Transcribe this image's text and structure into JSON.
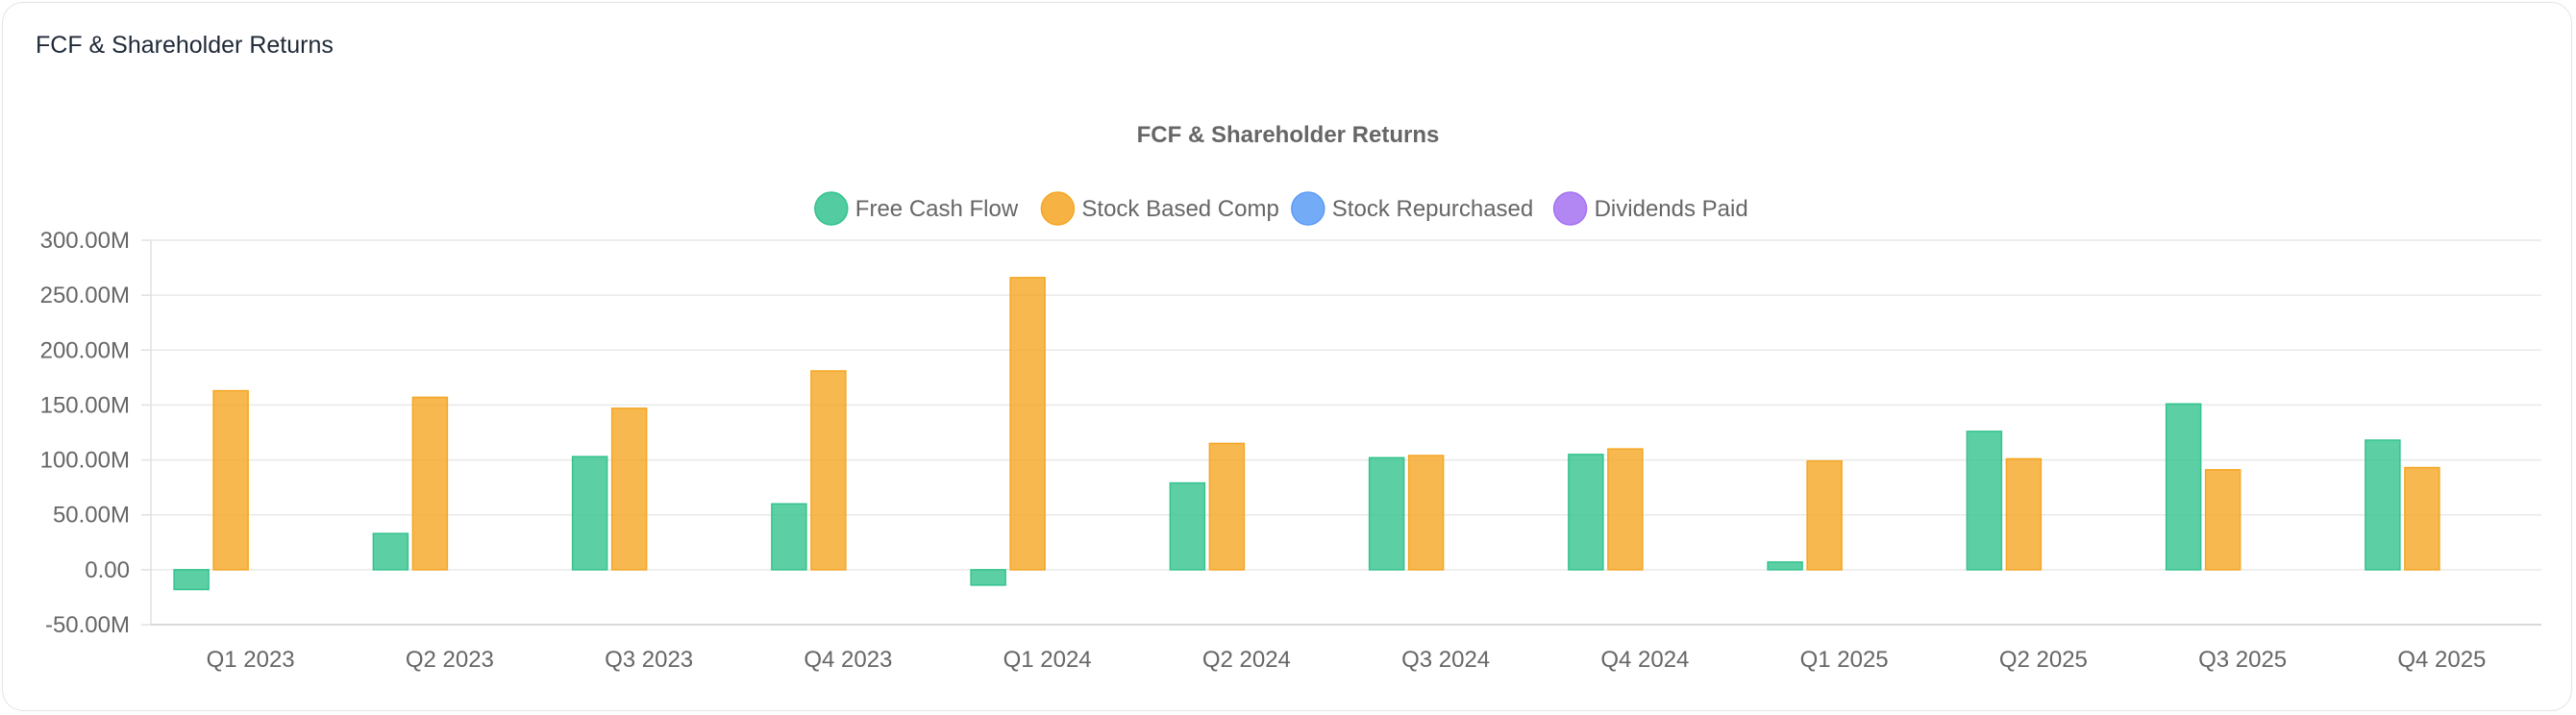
{
  "card": {
    "title": "FCF & Shareholder Returns"
  },
  "chart_data": {
    "type": "bar",
    "title": "FCF & Shareholder Returns",
    "xlabel": "",
    "ylabel": "",
    "categories": [
      "Q1 2023",
      "Q2 2023",
      "Q3 2023",
      "Q4 2023",
      "Q1 2024",
      "Q2 2024",
      "Q3 2024",
      "Q4 2024",
      "Q1 2025",
      "Q2 2025",
      "Q3 2025",
      "Q4 2025"
    ],
    "ylim": [
      -50000000,
      300000000
    ],
    "yticks": [
      300000000,
      250000000,
      200000000,
      150000000,
      100000000,
      50000000,
      0,
      -50000000
    ],
    "ytick_labels": [
      "300.00M",
      "250.00M",
      "200.00M",
      "150.00M",
      "100.00M",
      "50.00M",
      "0.00",
      "-50.00M"
    ],
    "grid": true,
    "legend_position": "top",
    "series": [
      {
        "name": "Free Cash Flow",
        "color": "#34c38f",
        "values": [
          -18000000,
          33000000,
          103000000,
          60000000,
          -14000000,
          79000000,
          102000000,
          105000000,
          7000000,
          126000000,
          151000000,
          118000000
        ]
      },
      {
        "name": "Stock Based Comp",
        "color": "#f5a623",
        "values": [
          163000000,
          157000000,
          147000000,
          181000000,
          266000000,
          115000000,
          104000000,
          110000000,
          99000000,
          101000000,
          91000000,
          93000000
        ]
      },
      {
        "name": "Stock Repurchased",
        "color": "#5b9cf6",
        "values": [
          0,
          0,
          0,
          0,
          0,
          0,
          0,
          0,
          0,
          0,
          0,
          0
        ]
      },
      {
        "name": "Dividends Paid",
        "color": "#a472f2",
        "values": [
          0,
          0,
          0,
          0,
          0,
          0,
          0,
          0,
          0,
          0,
          0,
          0
        ]
      }
    ]
  }
}
